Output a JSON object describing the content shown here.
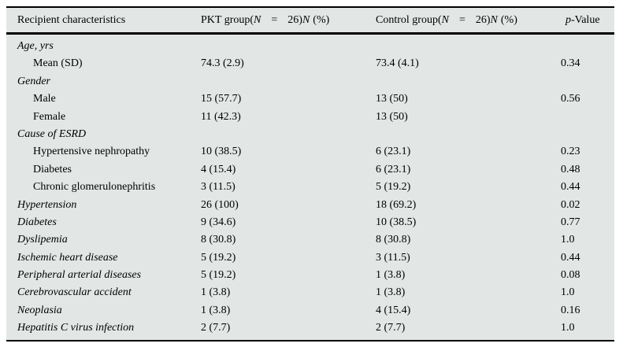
{
  "table": {
    "header": {
      "recipient": "Recipient characteristics",
      "pkt": {
        "pre": "PKT group(",
        "n1": "N",
        "eq": "=",
        "count": "26)",
        "n2": "N",
        "pct": "(%)"
      },
      "control": {
        "pre": "Control group(",
        "n1": "N",
        "eq": "=",
        "count": "26)",
        "n2": "N",
        "pct": "(%)"
      },
      "pvalue": {
        "p": "p",
        "rest": "-Value"
      }
    },
    "rows": [
      {
        "label": "Age, yrs",
        "pkt": "",
        "control": "",
        "p": ""
      },
      {
        "label": "Mean (SD)",
        "pkt": "74.3 (2.9)",
        "control": "73.4 (4.1)",
        "p": "0.34"
      },
      {
        "label": "Gender",
        "pkt": "",
        "control": "",
        "p": ""
      },
      {
        "label": "Male",
        "pkt": "15 (57.7)",
        "control": "13 (50)",
        "p": "0.56"
      },
      {
        "label": "Female",
        "pkt": "11 (42.3)",
        "control": "13 (50)",
        "p": ""
      },
      {
        "label": "Cause of ESRD",
        "pkt": "",
        "control": "",
        "p": ""
      },
      {
        "label": "Hypertensive nephropathy",
        "pkt": "10 (38.5)",
        "control": "6 (23.1)",
        "p": "0.23"
      },
      {
        "label": "Diabetes",
        "pkt": "4 (15.4)",
        "control": "6 (23.1)",
        "p": "0.48"
      },
      {
        "label": "Chronic glomerulonephritis",
        "pkt": "3 (11.5)",
        "control": "5 (19.2)",
        "p": "0.44"
      },
      {
        "label": "Hypertension",
        "pkt": "26 (100)",
        "control": "18 (69.2)",
        "p": "0.02"
      },
      {
        "label": "Diabetes",
        "pkt": "9 (34.6)",
        "control": "10 (38.5)",
        "p": "0.77"
      },
      {
        "label": "Dyslipemia",
        "pkt": "8 (30.8)",
        "control": "8 (30.8)",
        "p": "1.0"
      },
      {
        "label": "Ischemic heart disease",
        "pkt": "5 (19.2)",
        "control": "3 (11.5)",
        "p": "0.44"
      },
      {
        "label": "Peripheral arterial diseases",
        "pkt": "5 (19.2)",
        "control": "1 (3.8)",
        "p": "0.08"
      },
      {
        "label": "Cerebrovascular accident",
        "pkt": "1 (3.8)",
        "control": "1 (3.8)",
        "p": "1.0"
      },
      {
        "label": "Neoplasia",
        "pkt": "1 (3.8)",
        "control": "4 (15.4)",
        "p": "0.16"
      },
      {
        "label": "Hepatitis C virus infection",
        "pkt": "2 (7.7)",
        "control": "2 (7.7)",
        "p": "1.0"
      }
    ],
    "colors": {
      "table_bg": "#e2e6e5",
      "rule": "#000000",
      "text": "#000000",
      "page_bg": "#ffffff"
    }
  }
}
